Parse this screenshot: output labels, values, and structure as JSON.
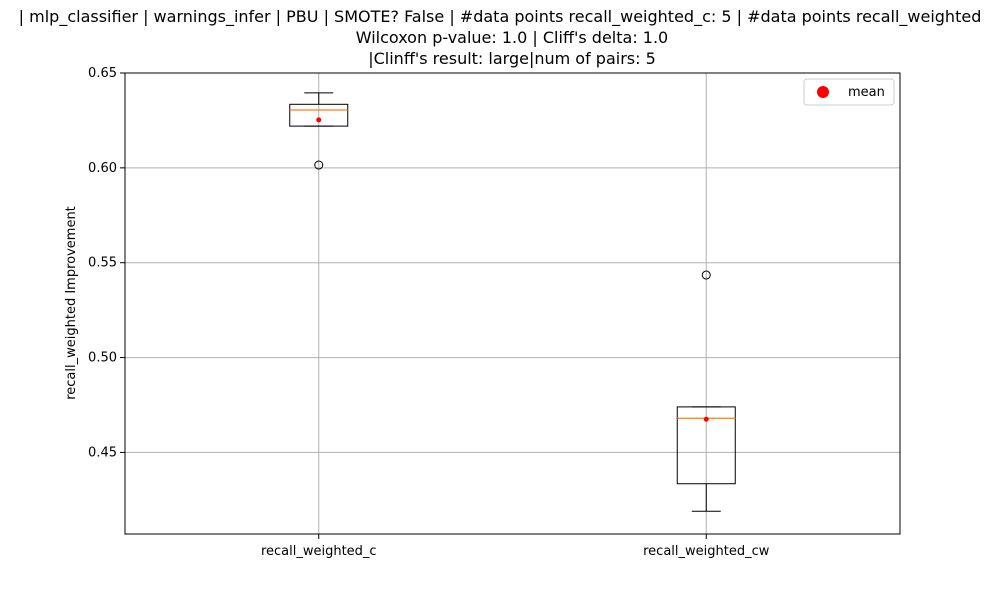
{
  "chart_data": {
    "type": "boxplot",
    "title_lines": [
      "| mlp_classifier | warnings_infer | PBU | SMOTE? False | #data points recall_weighted_c: 5 | #data points recall_weighted",
      "Wilcoxon p-value: 1.0 | Cliff's delta: 1.0",
      "|Clinff's result: large|num of pairs: 5"
    ],
    "ylabel": "recall_weighted Improvement",
    "xlabel": "",
    "ylim": [
      0.407,
      0.65
    ],
    "yticks": [
      0.45,
      0.5,
      0.55,
      0.6,
      0.65
    ],
    "ytick_labels": [
      "0.45",
      "0.50",
      "0.55",
      "0.60",
      "0.65"
    ],
    "grid": true,
    "legend": {
      "placement": "top-right",
      "entries": [
        {
          "label": "mean",
          "color": "#ff0000",
          "marker": "circle"
        }
      ]
    },
    "colors": {
      "median": "#ff7f0e",
      "mean": "#ff0000",
      "box": "#000000",
      "grid": "#b0b0b0"
    },
    "boxes": [
      {
        "category": "recall_weighted_c",
        "q1": 0.622,
        "median": 0.6305,
        "q3": 0.6335,
        "whisker_low": 0.622,
        "whisker_high": 0.6395,
        "outliers": [
          0.6015
        ],
        "mean": 0.6253
      },
      {
        "category": "recall_weighted_cw",
        "q1": 0.4335,
        "median": 0.468,
        "q3": 0.474,
        "whisker_low": 0.419,
        "whisker_high": 0.474,
        "outliers": [
          0.5435
        ],
        "mean": 0.4675
      }
    ]
  }
}
